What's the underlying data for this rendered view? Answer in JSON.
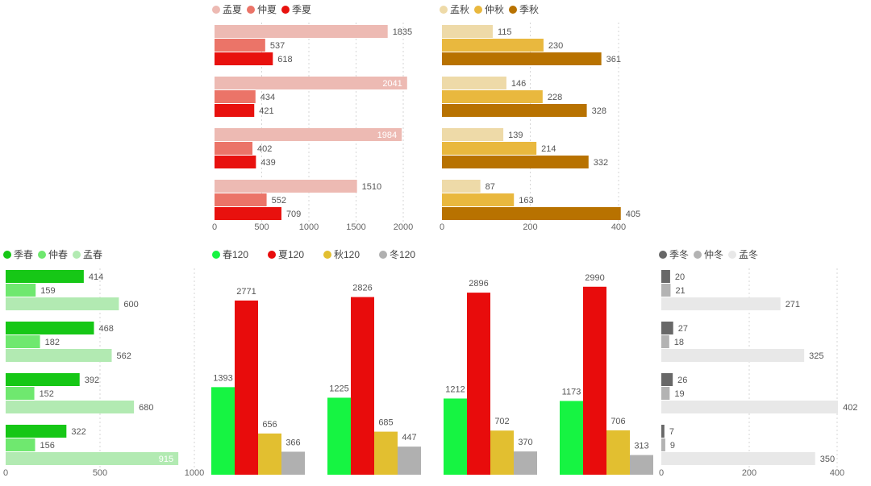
{
  "chart_data": [
    {
      "id": "summer",
      "type": "bar",
      "orientation": "horizontal",
      "series": [
        {
          "name": "孟夏",
          "color": "#EDBAB3",
          "values": [
            1835,
            2041,
            1984,
            1510
          ]
        },
        {
          "name": "仲夏",
          "color": "#EB7468",
          "values": [
            537,
            434,
            402,
            552
          ]
        },
        {
          "name": "季夏",
          "color": "#E8110E",
          "values": [
            618,
            421,
            439,
            709
          ]
        }
      ],
      "xlim": [
        0,
        2200
      ],
      "ticks": [
        "0",
        "500",
        "1000",
        "1500",
        "2000"
      ],
      "tick_values": [
        0,
        500,
        1000,
        1500,
        2000
      ],
      "legend": "top-left",
      "grid": true
    },
    {
      "id": "autumn",
      "type": "bar",
      "orientation": "horizontal",
      "series": [
        {
          "name": "孟秋",
          "color": "#EEDAA8",
          "values": [
            115,
            146,
            139,
            87
          ]
        },
        {
          "name": "仲秋",
          "color": "#E9B83E",
          "values": [
            230,
            228,
            214,
            163
          ]
        },
        {
          "name": "季秋",
          "color": "#B87200",
          "values": [
            361,
            328,
            332,
            405
          ]
        }
      ],
      "xlim": [
        0,
        420
      ],
      "ticks": [
        "0",
        "200",
        "400"
      ],
      "tick_values": [
        0,
        200,
        400
      ],
      "legend": "top-left",
      "grid": true
    },
    {
      "id": "spring",
      "type": "bar",
      "orientation": "horizontal",
      "series": [
        {
          "name": "季春",
          "color": "#16C716",
          "values": [
            414,
            468,
            392,
            322
          ]
        },
        {
          "name": "仲春",
          "color": "#6FE86F",
          "values": [
            159,
            182,
            152,
            156
          ]
        },
        {
          "name": "孟春",
          "color": "#B2EAB2",
          "values": [
            600,
            562,
            680,
            915
          ]
        }
      ],
      "xlim": [
        0,
        1000
      ],
      "ticks": [
        "0",
        "500",
        "1000"
      ],
      "tick_values": [
        0,
        500,
        1000
      ],
      "legend": "top-left",
      "grid": true
    },
    {
      "id": "seasons120",
      "type": "bar",
      "orientation": "vertical",
      "categories": [
        "",
        "",
        "",
        ""
      ],
      "series": [
        {
          "name": "春120",
          "color": "#16F442",
          "values": [
            1393,
            1225,
            1212,
            1173
          ]
        },
        {
          "name": "夏120",
          "color": "#E80C0C",
          "values": [
            2771,
            2826,
            2896,
            2990
          ]
        },
        {
          "name": "秋120",
          "color": "#E2BF30",
          "values": [
            656,
            685,
            702,
            706
          ]
        },
        {
          "name": "冬120",
          "color": "#B0B0B0",
          "values": [
            366,
            447,
            370,
            313
          ]
        }
      ],
      "ylim": [
        0,
        3100
      ],
      "legend": "top-left",
      "grid": false
    },
    {
      "id": "winter",
      "type": "bar",
      "orientation": "horizontal",
      "series": [
        {
          "name": "季冬",
          "color": "#686868",
          "values": [
            20,
            27,
            26,
            7
          ]
        },
        {
          "name": "仲冬",
          "color": "#B3B3B3",
          "values": [
            21,
            18,
            19,
            9
          ]
        },
        {
          "name": "孟冬",
          "color": "#E8E8E8",
          "values": [
            271,
            325,
            402,
            350
          ]
        }
      ],
      "xlim": [
        0,
        400
      ],
      "ticks": [
        "0",
        "200",
        "400"
      ],
      "tick_values": [
        0,
        200,
        400
      ],
      "legend": "top-left",
      "grid": true
    }
  ]
}
